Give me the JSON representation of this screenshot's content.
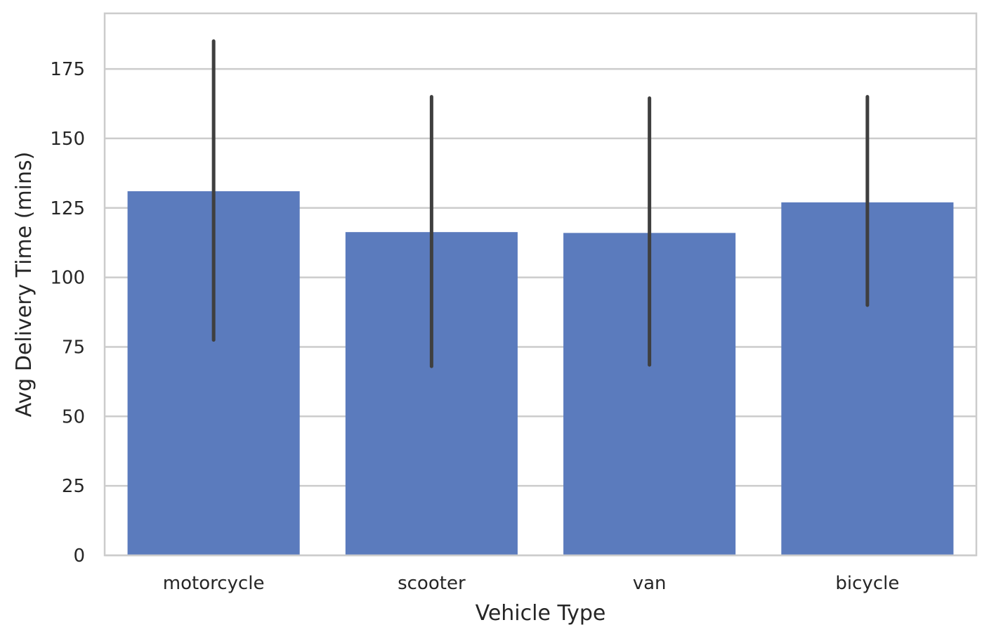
{
  "chart_data": {
    "type": "bar",
    "xlabel": "Vehicle Type",
    "ylabel": "Avg Delivery Time (mins)",
    "categories": [
      "motorcycle",
      "scooter",
      "van",
      "bicycle"
    ],
    "values": [
      131,
      116.3,
      116,
      127
    ],
    "error_low": [
      77.5,
      68,
      68.5,
      90
    ],
    "error_high": [
      185,
      165,
      164.5,
      165
    ],
    "ylim": [
      0,
      195
    ],
    "yticks": [
      0,
      25,
      50,
      75,
      100,
      125,
      150,
      175
    ],
    "grid": "horizontal",
    "bar_color": "#5b7bbd",
    "error_color": "#3f3f3f",
    "grid_color": "#cccccc"
  }
}
